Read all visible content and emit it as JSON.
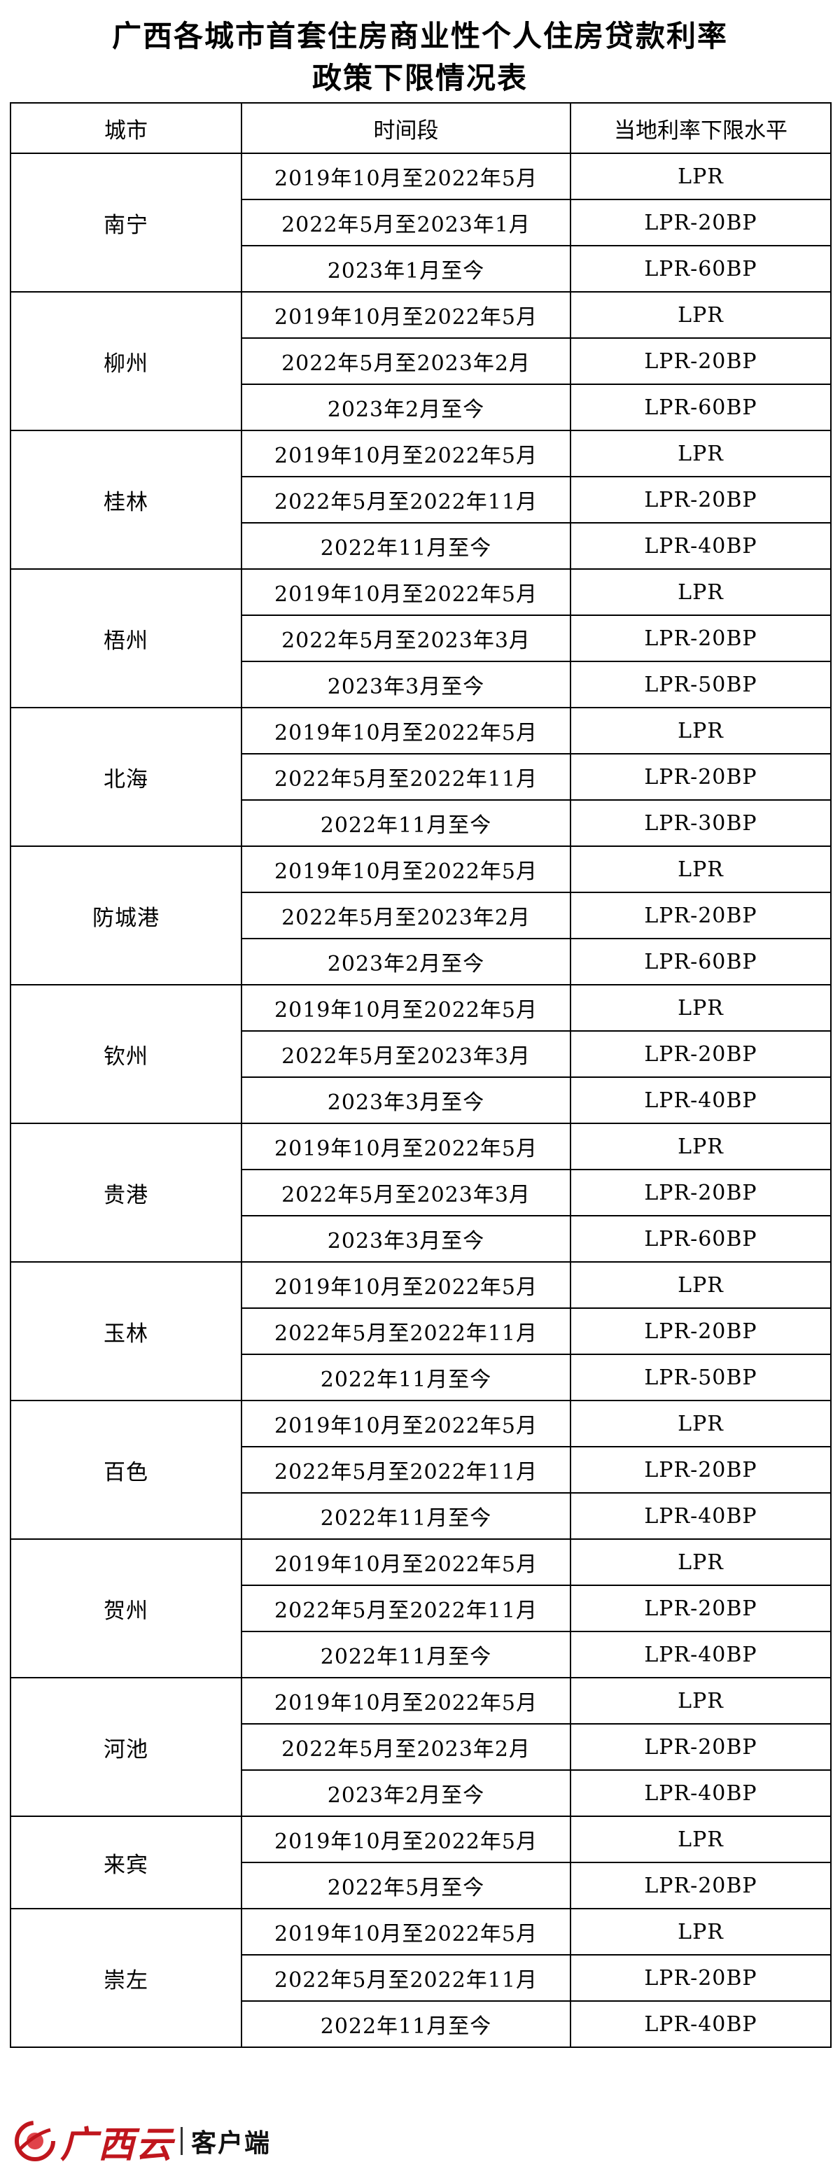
{
  "title": {
    "line1": "广西各城市首套住房商业性个人住房贷款利率",
    "line2": "政策下限情况表"
  },
  "table": {
    "headers": [
      "城市",
      "时间段",
      "当地利率下限水平"
    ],
    "cities": [
      {
        "name": "南宁",
        "rows": [
          {
            "period": "2019年10月至2022年5月",
            "rate": "LPR"
          },
          {
            "period": "2022年5月至2023年1月",
            "rate": "LPR-20BP"
          },
          {
            "period": "2023年1月至今",
            "rate": "LPR-60BP"
          }
        ]
      },
      {
        "name": "柳州",
        "rows": [
          {
            "period": "2019年10月至2022年5月",
            "rate": "LPR"
          },
          {
            "period": "2022年5月至2023年2月",
            "rate": "LPR-20BP"
          },
          {
            "period": "2023年2月至今",
            "rate": "LPR-60BP"
          }
        ]
      },
      {
        "name": "桂林",
        "rows": [
          {
            "period": "2019年10月至2022年5月",
            "rate": "LPR"
          },
          {
            "period": "2022年5月至2022年11月",
            "rate": "LPR-20BP"
          },
          {
            "period": "2022年11月至今",
            "rate": "LPR-40BP"
          }
        ]
      },
      {
        "name": "梧州",
        "rows": [
          {
            "period": "2019年10月至2022年5月",
            "rate": "LPR"
          },
          {
            "period": "2022年5月至2023年3月",
            "rate": "LPR-20BP"
          },
          {
            "period": "2023年3月至今",
            "rate": "LPR-50BP"
          }
        ]
      },
      {
        "name": "北海",
        "rows": [
          {
            "period": "2019年10月至2022年5月",
            "rate": "LPR"
          },
          {
            "period": "2022年5月至2022年11月",
            "rate": "LPR-20BP"
          },
          {
            "period": "2022年11月至今",
            "rate": "LPR-30BP"
          }
        ]
      },
      {
        "name": "防城港",
        "rows": [
          {
            "period": "2019年10月至2022年5月",
            "rate": "LPR"
          },
          {
            "period": "2022年5月至2023年2月",
            "rate": "LPR-20BP"
          },
          {
            "period": "2023年2月至今",
            "rate": "LPR-60BP"
          }
        ]
      },
      {
        "name": "钦州",
        "rows": [
          {
            "period": "2019年10月至2022年5月",
            "rate": "LPR"
          },
          {
            "period": "2022年5月至2023年3月",
            "rate": "LPR-20BP"
          },
          {
            "period": "2023年3月至今",
            "rate": "LPR-40BP"
          }
        ]
      },
      {
        "name": "贵港",
        "rows": [
          {
            "period": "2019年10月至2022年5月",
            "rate": "LPR"
          },
          {
            "period": "2022年5月至2023年3月",
            "rate": "LPR-20BP"
          },
          {
            "period": "2023年3月至今",
            "rate": "LPR-60BP"
          }
        ]
      },
      {
        "name": "玉林",
        "rows": [
          {
            "period": "2019年10月至2022年5月",
            "rate": "LPR"
          },
          {
            "period": "2022年5月至2022年11月",
            "rate": "LPR-20BP"
          },
          {
            "period": "2022年11月至今",
            "rate": "LPR-50BP"
          }
        ]
      },
      {
        "name": "百色",
        "rows": [
          {
            "period": "2019年10月至2022年5月",
            "rate": "LPR"
          },
          {
            "period": "2022年5月至2022年11月",
            "rate": "LPR-20BP"
          },
          {
            "period": "2022年11月至今",
            "rate": "LPR-40BP"
          }
        ]
      },
      {
        "name": "贺州",
        "rows": [
          {
            "period": "2019年10月至2022年5月",
            "rate": "LPR"
          },
          {
            "period": "2022年5月至2022年11月",
            "rate": "LPR-20BP"
          },
          {
            "period": "2022年11月至今",
            "rate": "LPR-40BP"
          }
        ]
      },
      {
        "name": "河池",
        "rows": [
          {
            "period": "2019年10月至2022年5月",
            "rate": "LPR"
          },
          {
            "period": "2022年5月至2023年2月",
            "rate": "LPR-20BP"
          },
          {
            "period": "2023年2月至今",
            "rate": "LPR-40BP"
          }
        ]
      },
      {
        "name": "来宾",
        "rows": [
          {
            "period": "2019年10月至2022年5月",
            "rate": "LPR"
          },
          {
            "period": "2022年5月至今",
            "rate": "LPR-20BP"
          }
        ]
      },
      {
        "name": "崇左",
        "rows": [
          {
            "period": "2019年10月至2022年5月",
            "rate": "LPR"
          },
          {
            "period": "2022年5月至2022年11月",
            "rate": "LPR-20BP"
          },
          {
            "period": "2022年11月至今",
            "rate": "LPR-40BP"
          }
        ]
      }
    ]
  },
  "watermark": {
    "brand": "广西云",
    "tag": "客户端",
    "icon": "guangxiyun-logo-icon",
    "color": "#c0161d"
  }
}
